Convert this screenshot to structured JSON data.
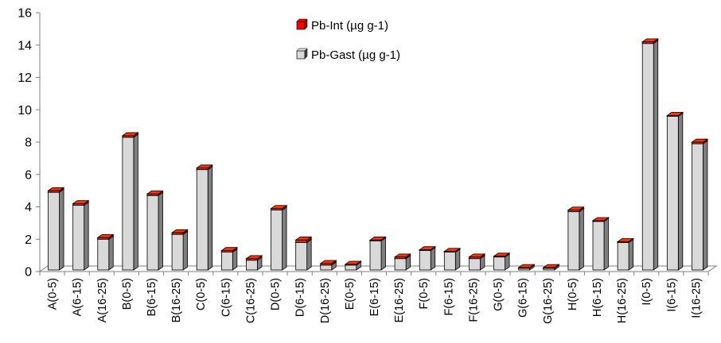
{
  "chart_data": {
    "type": "bar",
    "title": "",
    "xlabel": "",
    "ylabel": "",
    "ylim": [
      0,
      16
    ],
    "yticks": [
      0,
      2,
      4,
      6,
      8,
      10,
      12,
      14,
      16
    ],
    "ytick_labels": [
      "0",
      "2",
      "4",
      "6",
      "8",
      "10",
      "12",
      "14",
      "16"
    ],
    "grid": false,
    "legend_position": "top-center",
    "stacked": true,
    "three_d": true,
    "categories": [
      "A(0-5)",
      "A(6-15)",
      "A(16-25)",
      "B(0-5)",
      "B(6-15)",
      "B(16-25)",
      "C(0-5)",
      "C(6-15)",
      "C(16-25)",
      "D(0-5)",
      "D(6-15)",
      "D(16-25)",
      "E(0-5)",
      "E(6-15)",
      "E(16-25)",
      "F(0-5)",
      "F(6-15)",
      "F(16-25)",
      "G(0-5)",
      "G(6-15)",
      "G(16-25)",
      "H(0-5)",
      "H(6-15)",
      "H(16-25)",
      "I(0-5)",
      "I(6-15)",
      "I(16-25)"
    ],
    "series": [
      {
        "name": "Pb-Gast (µg g-1)",
        "color": "#d9d9d9",
        "values": [
          4.8,
          4.0,
          1.9,
          8.2,
          4.6,
          2.2,
          6.2,
          1.1,
          0.6,
          3.7,
          1.7,
          0.3,
          0.3,
          1.8,
          0.7,
          1.2,
          1.1,
          0.7,
          0.8,
          0.1,
          0.1,
          3.6,
          3.0,
          1.7,
          14.0,
          9.5,
          7.8
        ]
      },
      {
        "name": "Pb-Int (µg g-1)",
        "color": "#ff0000",
        "values": [
          0.1,
          0.1,
          0.1,
          0.1,
          0.1,
          0.1,
          0.1,
          0.1,
          0.1,
          0.1,
          0.15,
          0.1,
          0.05,
          0.05,
          0.1,
          0.05,
          0.05,
          0.1,
          0.05,
          0.05,
          0.05,
          0.1,
          0.05,
          0.05,
          0.1,
          0.05,
          0.1
        ]
      }
    ],
    "legend": [
      {
        "label": "Pb-Int (µg g-1)",
        "color": "#ff0000",
        "darker": "#7f1d0d"
      },
      {
        "label": "Pb-Gast (µg g-1)",
        "color": "#d9d9d9",
        "darker": "#404040"
      }
    ],
    "colors": {
      "gast_front": "#d9d9d9",
      "gast_side": "#7f7f7f",
      "gast_top": "#efefef",
      "int_front": "#e02a00",
      "int_top": "#ff3300",
      "int_side": "#8b1a00",
      "outline": "#000000",
      "axis": "#7f7f7f"
    }
  }
}
